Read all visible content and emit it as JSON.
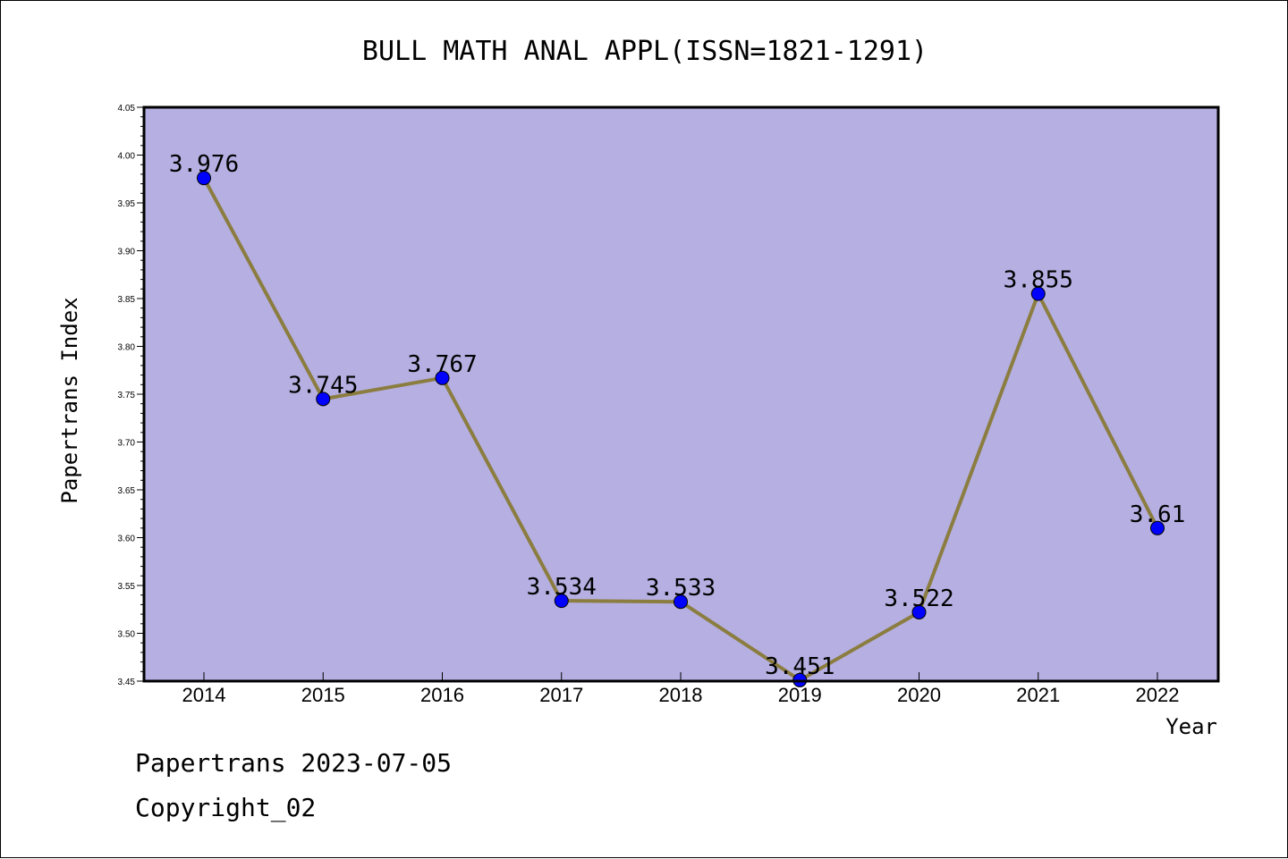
{
  "chart_data": {
    "type": "line",
    "title": "BULL MATH ANAL APPL(ISSN=1821-1291)",
    "xlabel": "Year",
    "ylabel": "Papertrans Index",
    "categories": [
      "2014",
      "2015",
      "2016",
      "2017",
      "2018",
      "2019",
      "2020",
      "2021",
      "2022"
    ],
    "series": [
      {
        "values": [
          3.976,
          3.745,
          3.767,
          3.534,
          3.533,
          3.451,
          3.522,
          3.855,
          3.61
        ],
        "data_labels": [
          "3.976",
          "3.745",
          "3.767",
          "3.534",
          "3.533",
          "3.451",
          "3.522",
          "3.855",
          "3.61"
        ],
        "line_color": "#8B7D3F",
        "marker_color": "#0000FF"
      }
    ],
    "ylim": [
      3.45,
      4.05
    ],
    "yticks": [
      "3.45",
      "3.50",
      "3.55",
      "3.60",
      "3.65",
      "3.70",
      "3.75",
      "3.80",
      "3.85",
      "3.90",
      "3.95",
      "4.00",
      "4.05"
    ],
    "plot_background": "#B5AFE2",
    "grid": false
  },
  "footer": {
    "line1": "Papertrans 2023-07-05",
    "line2": "Copyright_02"
  }
}
